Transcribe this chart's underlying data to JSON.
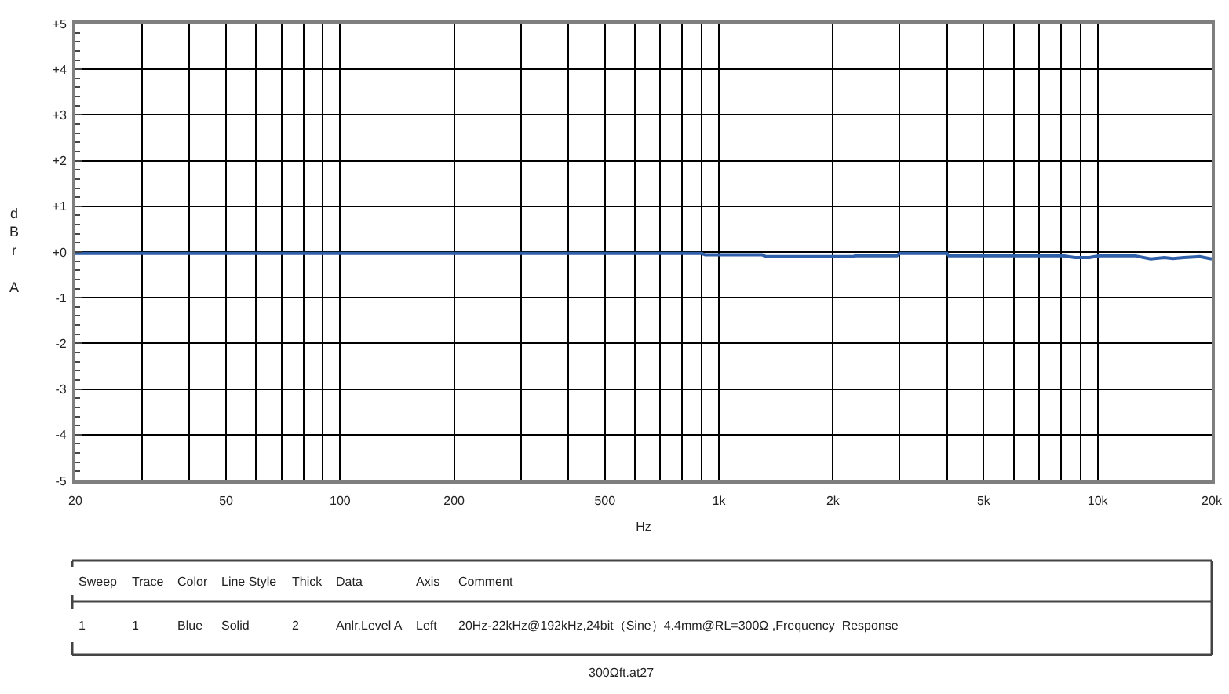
{
  "chart_data": {
    "type": "line",
    "xlabel": "Hz",
    "ylabel": "dBr A",
    "log": "x",
    "grid": true,
    "xlim": [
      20,
      20000
    ],
    "ylim": [
      -5,
      5
    ],
    "xticks": [
      20,
      {
        "value": 30,
        "label": null
      },
      {
        "value": 40,
        "label": null
      },
      50,
      {
        "value": 60,
        "label": null
      },
      {
        "value": 70,
        "label": null
      },
      {
        "value": 80,
        "label": null
      },
      {
        "value": 90,
        "label": null
      },
      100,
      200,
      {
        "value": 300,
        "label": null
      },
      {
        "value": 400,
        "label": null
      },
      500,
      {
        "value": 600,
        "label": null
      },
      {
        "value": 700,
        "label": null
      },
      {
        "value": 800,
        "label": null
      },
      {
        "value": 900,
        "label": null
      },
      {
        "value": 1000,
        "label": "1k"
      },
      {
        "value": 2000,
        "label": "2k"
      },
      {
        "value": 3000,
        "label": null
      },
      {
        "value": 4000,
        "label": null
      },
      {
        "value": 5000,
        "label": "5k"
      },
      {
        "value": 6000,
        "label": null
      },
      {
        "value": 7000,
        "label": null
      },
      {
        "value": 8000,
        "label": null
      },
      {
        "value": 9000,
        "label": null
      },
      {
        "value": 10000,
        "label": "10k"
      },
      {
        "value": 20000,
        "label": "20k"
      }
    ],
    "yticks": [
      {
        "value": 5,
        "label": "+5"
      },
      {
        "value": 4.8,
        "label": null
      },
      {
        "value": 4.6,
        "label": null
      },
      {
        "value": 4.4,
        "label": null
      },
      {
        "value": 4.2,
        "label": null
      },
      {
        "value": 4,
        "label": "+4"
      },
      {
        "value": 3.8,
        "label": null
      },
      {
        "value": 3.6,
        "label": null
      },
      {
        "value": 3.4,
        "label": null
      },
      {
        "value": 3.2,
        "label": null
      },
      {
        "value": 3,
        "label": "+3"
      },
      {
        "value": 2.8,
        "label": null
      },
      {
        "value": 2.6,
        "label": null
      },
      {
        "value": 2.4,
        "label": null
      },
      {
        "value": 2.2,
        "label": null
      },
      {
        "value": 2,
        "label": "+2"
      },
      {
        "value": 1.8,
        "label": null
      },
      {
        "value": 1.6,
        "label": null
      },
      {
        "value": 1.4,
        "label": null
      },
      {
        "value": 1.2,
        "label": null
      },
      {
        "value": 1,
        "label": "+1"
      },
      {
        "value": 0.8,
        "label": null
      },
      {
        "value": 0.6,
        "label": null
      },
      {
        "value": 0.4,
        "label": null
      },
      {
        "value": 0.2,
        "label": null
      },
      {
        "value": 0,
        "label": "+0"
      },
      {
        "value": -0.2,
        "label": null
      },
      {
        "value": -0.4,
        "label": null
      },
      {
        "value": -0.6,
        "label": null
      },
      {
        "value": -0.8,
        "label": null
      },
      -1,
      {
        "value": -1.2,
        "label": null
      },
      {
        "value": -1.4,
        "label": null
      },
      {
        "value": -1.6,
        "label": null
      },
      {
        "value": -1.8,
        "label": null
      },
      -2,
      {
        "value": -2.2,
        "label": null
      },
      {
        "value": -2.4,
        "label": null
      },
      {
        "value": -2.6,
        "label": null
      },
      {
        "value": -2.8,
        "label": null
      },
      -3,
      {
        "value": -3.2,
        "label": null
      },
      {
        "value": -3.4,
        "label": null
      },
      {
        "value": -3.6,
        "label": null
      },
      {
        "value": -3.8,
        "label": null
      },
      -4,
      {
        "value": -4.2,
        "label": null
      },
      {
        "value": -4.4,
        "label": null
      },
      {
        "value": -4.6,
        "label": null
      },
      {
        "value": -4.8,
        "label": null
      },
      -5
    ],
    "series": [
      {
        "color": "#2e5fa8",
        "line_style": "solid",
        "x": [
          20,
          900,
          920,
          1300,
          1330,
          2250,
          2300,
          2950,
          3000,
          4000,
          4050,
          8100,
          8700,
          9500,
          10100,
          12500,
          13800,
          15000,
          15800,
          16900,
          18600,
          20000
        ],
        "values": [
          -0.03,
          -0.03,
          -0.06,
          -0.06,
          -0.1,
          -0.1,
          -0.08,
          -0.08,
          -0.03,
          -0.03,
          -0.08,
          -0.08,
          -0.12,
          -0.12,
          -0.08,
          -0.08,
          -0.15,
          -0.12,
          -0.14,
          -0.12,
          -0.1,
          -0.15
        ]
      }
    ],
    "annotations": [
      "Sweep",
      "Trace",
      "Color",
      "Line Style",
      "Thick",
      "Data",
      "Axis",
      "Comment",
      "1",
      "1",
      "Blue",
      "Solid",
      "2",
      "Anlr.Level A",
      "Left",
      "20Hz-22kHz@192kHz,24bit（Sine）4.4mm@RL=300Ω ,Frequency  Response",
      "300Ωft.at27"
    ]
  }
}
